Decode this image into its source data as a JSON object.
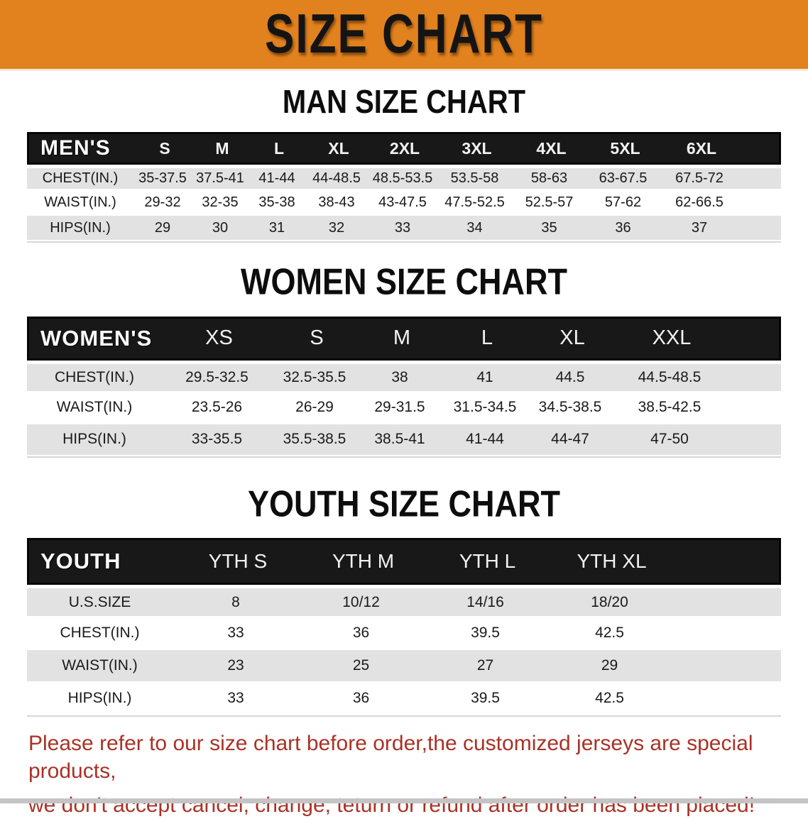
{
  "banner": {
    "title": "SIZE CHART",
    "bg_color": "#E2821E"
  },
  "colors": {
    "banner_bg": "#E2821E",
    "table_header_bar": "#181818",
    "row_stripe": "#E2E2E2",
    "disclaimer_text": "#A93226"
  },
  "sections": [
    {
      "id": "man-size-chart",
      "heading": "MAN SIZE CHART",
      "table": {
        "label": "MEN'S",
        "columns": [
          "S",
          "M",
          "L",
          "XL",
          "2XL",
          "3XL",
          "4XL",
          "5XL",
          "6XL"
        ],
        "rows": [
          {
            "label": "CHEST(IN.)",
            "values": [
              "35-37.5",
              "37.5-41",
              "41-44",
              "44-48.5",
              "48.5-53.5",
              "53.5-58",
              "58-63",
              "63-67.5",
              "67.5-72"
            ]
          },
          {
            "label": "WAIST(IN.)",
            "values": [
              "29-32",
              "32-35",
              "35-38",
              "38-43",
              "43-47.5",
              "47.5-52.5",
              "52.5-57",
              "57-62",
              "62-66.5"
            ]
          },
          {
            "label": "HIPS(IN.)",
            "values": [
              "29",
              "30",
              "31",
              "32",
              "33",
              "34",
              "35",
              "36",
              "37"
            ]
          }
        ]
      }
    },
    {
      "id": "women-size-chart",
      "heading": "WOMEN SIZE CHART",
      "table": {
        "label": "WOMEN'S",
        "columns": [
          "XS",
          "S",
          "M",
          "L",
          "XL",
          "XXL"
        ],
        "rows": [
          {
            "label": "CHEST(IN.)",
            "values": [
              "29.5-32.5",
              "32.5-35.5",
              "38",
              "41",
              "44.5",
              "44.5-48.5"
            ]
          },
          {
            "label": "WAIST(IN.)",
            "values": [
              "23.5-26",
              "26-29",
              "29-31.5",
              "31.5-34.5",
              "34.5-38.5",
              "38.5-42.5"
            ]
          },
          {
            "label": "HIPS(IN.)",
            "values": [
              "33-35.5",
              "35.5-38.5",
              "38.5-41",
              "41-44",
              "44-47",
              "47-50"
            ]
          }
        ]
      }
    },
    {
      "id": "youth-size-chart",
      "heading": "YOUTH SIZE CHART",
      "table": {
        "label": "YOUTH",
        "columns": [
          "YTH S",
          "YTH M",
          "YTH L",
          "YTH XL"
        ],
        "rows": [
          {
            "label": "U.S.SIZE",
            "values": [
              "8",
              "10/12",
              "14/16",
              "18/20"
            ]
          },
          {
            "label": "CHEST(IN.)",
            "values": [
              "33",
              "36",
              "39.5",
              "42.5"
            ]
          },
          {
            "label": "WAIST(IN.)",
            "values": [
              "23",
              "25",
              "27",
              "29"
            ]
          },
          {
            "label": "HIPS(IN.)",
            "values": [
              "33",
              "36",
              "39.5",
              "42.5"
            ]
          }
        ]
      }
    }
  ],
  "disclaimer": {
    "line1": "Please refer to our size chart before order,the customized jerseys are special products,",
    "line2": "we don't accept cancel, change, teturn or refund after order has been placed!"
  }
}
